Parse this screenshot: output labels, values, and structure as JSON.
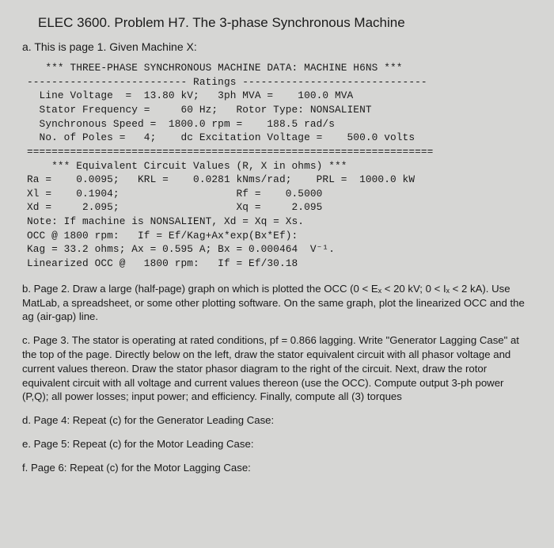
{
  "title": "ELEC 3600.  Problem H7.  The 3-phase Synchronous Machine",
  "a_head": "a.  This is page 1.   Given Machine X:",
  "mono": "   *** THREE-PHASE SYNCHRONOUS MACHINE DATA: MACHINE H6NS ***\n-------------------------- Ratings ------------------------------\n  Line Voltage  =  13.80 kV;   3ph MVA =    100.0 MVA\n  Stator Frequency =     60 Hz;   Rotor Type: NONSALIENT\n  Synchronous Speed =  1800.0 rpm =    188.5 rad/s\n  No. of Poles =   4;    dc Excitation Voltage =    500.0 volts\n==================================================================\n    *** Equivalent Circuit Values (R, X in ohms) ***\nRa =    0.0095;   KRL =    0.0281 kNms/rad;    PRL =  1000.0 kW\nXl =    0.1904;                   Rf =    0.5000\nXd =     2.095;                   Xq =     2.095\nNote: If machine is NONSALIENT, Xd = Xq = Xs.\nOCC @ 1800 rpm:   If = Ef/Kag+Ax*exp(Bx*Ef):\nKag = 33.2 ohms; Ax = 0.595 A; Bx = 0.000464  V⁻¹.\nLinearized OCC @   1800 rpm:   If = Ef/30.18",
  "b": "b. Page 2. Draw a large (half-page) graph on which is plotted the OCC (0 < Eₓ < 20 kV;  0 < Iₓ < 2 kA). Use MatLab, a spreadsheet, or some other plotting software.   On the same graph, plot the linearized OCC and the ag (air-gap) line.",
  "c": "c.  Page 3. The stator is operating at rated conditions, pf = 0.866 lagging. Write \"Generator Lagging Case\" at the top of the page.  Directly below on the left, draw the stator equivalent circuit with all phasor voltage and current values thereon.  Draw the stator phasor diagram to the right of the circuit.  Next, draw the rotor equivalent circuit with all voltage and current values thereon (use the OCC).  Compute output 3-ph power (P,Q); all power losses; input power; and efficiency.  Finally, compute all (3) torques",
  "d": "d.  Page 4:  Repeat (c) for the Generator Leading Case:",
  "e": "e.  Page 5:  Repeat (c) for the Motor Leading Case:",
  "f": "f.  Page 6:  Repeat (c) for the Motor Lagging Case:"
}
